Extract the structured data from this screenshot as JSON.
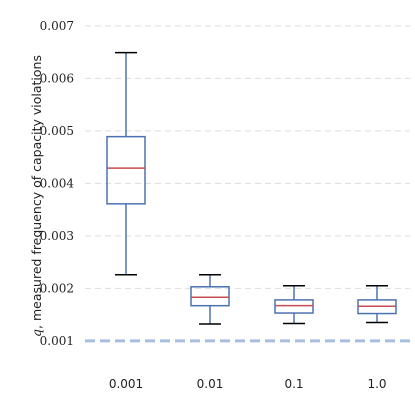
{
  "chart_data": {
    "type": "box",
    "categories": [
      "0.001",
      "0.01",
      "0.1",
      "1.0"
    ],
    "y_tick_labels": [
      "0.001",
      "0.002",
      "0.003",
      "0.004",
      "0.005",
      "0.006",
      "0.007"
    ],
    "y_ticks": [
      0.001,
      0.002,
      0.003,
      0.004,
      0.005,
      0.006,
      0.007
    ],
    "ylabel_var": "q",
    "ylabel_rest": ", measured frequency of capacity violations",
    "xlabel": "",
    "ylim": [
      0.00054,
      0.00715
    ],
    "grid": true,
    "reference_line": 0.001,
    "boxes": [
      {
        "whislo": 0.00226,
        "q1": 0.00361,
        "med": 0.00429,
        "q3": 0.00489,
        "whishi": 0.00649
      },
      {
        "whislo": 0.00132,
        "q1": 0.00167,
        "med": 0.00183,
        "q3": 0.00203,
        "whishi": 0.00226
      },
      {
        "whislo": 0.00133,
        "q1": 0.00153,
        "med": 0.00167,
        "q3": 0.00178,
        "whishi": 0.00205
      },
      {
        "whislo": 0.00135,
        "q1": 0.00152,
        "med": 0.00166,
        "q3": 0.00178,
        "whishi": 0.00205
      }
    ],
    "colors": {
      "box": "#4c72b0",
      "median": "#c44e52",
      "whisker": "#000000",
      "grid": "#dddddd",
      "reference": "#a9bddf"
    }
  }
}
